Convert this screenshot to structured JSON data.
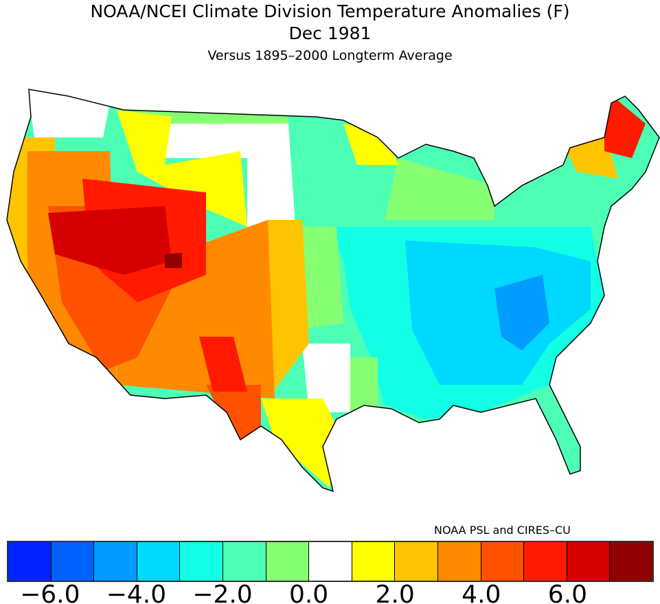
{
  "title": "NOAA/NCEI Climate Division Temperature Anomalies (F)",
  "period": "Dec 1981",
  "subtitle": "Versus 1895–2000 Longterm Average",
  "credit": "NOAA PSL and CIRES–CU",
  "colorbar": {
    "colors": [
      "#0024ff",
      "#0063ff",
      "#009cff",
      "#00d9ff",
      "#12ffe6",
      "#4dffb5",
      "#86ff72",
      "#ffffff",
      "#ffff00",
      "#ffc400",
      "#ff8a00",
      "#ff5200",
      "#ff1a00",
      "#d60000",
      "#900000"
    ],
    "tick_labels": [
      "−6.0",
      "−4.0",
      "−2.0",
      "0.0",
      "2.0",
      "4.0",
      "6.0"
    ]
  }
}
